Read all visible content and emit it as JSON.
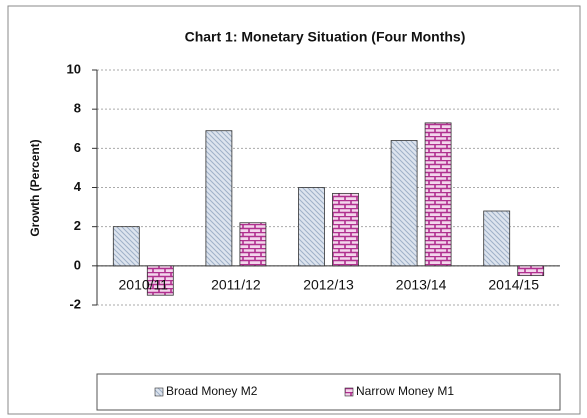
{
  "chart_data": {
    "type": "bar",
    "title": "Chart 1:  Monetary Situation (Four Months)",
    "y_label": "Growth (Percent)",
    "categories": [
      "2010/11",
      "2011/12",
      "2012/13",
      "2013/14",
      "2014/15"
    ],
    "series": [
      {
        "name": "Broad Money M2",
        "color": "#9fb0c8",
        "values": [
          2.0,
          6.9,
          4.0,
          6.4,
          2.8
        ]
      },
      {
        "name": "Narrow Money M1",
        "color": "#b0308f",
        "values": [
          -1.5,
          2.2,
          3.7,
          7.3,
          -0.5
        ]
      }
    ],
    "ylim": [
      -2,
      10
    ],
    "yticks": [
      -2,
      0,
      2,
      4,
      6,
      8,
      10
    ],
    "grid": true,
    "legend": "bottom"
  }
}
